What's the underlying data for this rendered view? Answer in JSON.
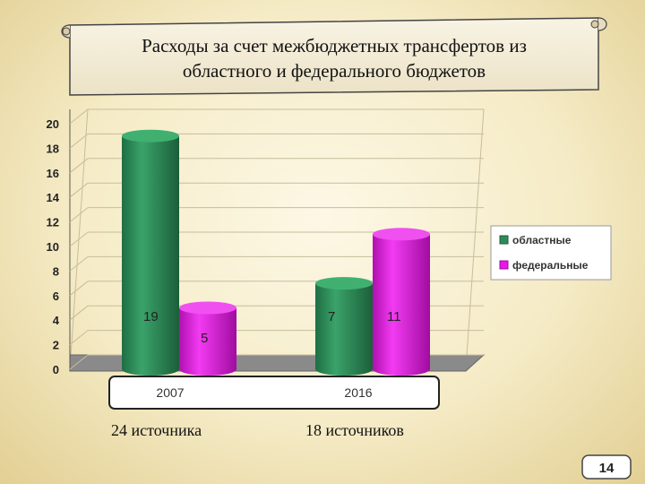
{
  "title": {
    "line1": "Расходы за счет межбюджетных трансфертов из",
    "line2": "областного и федерального бюджетов"
  },
  "chart_data": {
    "type": "bar",
    "categories": [
      "2007",
      "2016"
    ],
    "series": [
      {
        "name": "областные",
        "values": [
          19,
          7
        ],
        "labels": [
          "19",
          "7"
        ],
        "color": "#2e8b57"
      },
      {
        "name": "федеральные",
        "values": [
          5,
          11
        ],
        "labels": [
          "5",
          "11"
        ],
        "color": "#e619e6"
      }
    ],
    "ylim": [
      0,
      20
    ],
    "yticks": [
      "0",
      "2",
      "4",
      "6",
      "8",
      "10",
      "12",
      "14",
      "16",
      "18",
      "20"
    ],
    "grid": true,
    "legend": "right"
  },
  "notes": {
    "left": "24 источника",
    "right": "18 источников"
  },
  "page_number": "14"
}
